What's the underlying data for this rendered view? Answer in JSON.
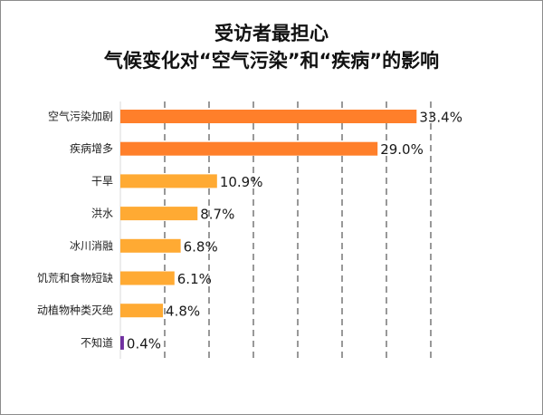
{
  "title_line1": "受访者最担心",
  "title_line2": "气候变化对“空气污染”和“疾病”的影响",
  "chart_data": {
    "type": "bar",
    "orientation": "horizontal",
    "categories": [
      "空气污染加剧",
      "疾病增多",
      "干旱",
      "洪水",
      "冰川消融",
      "饥荒和食物短缺",
      "动植物种类灭绝",
      "不知道"
    ],
    "values": [
      33.4,
      29.0,
      10.9,
      8.7,
      6.8,
      6.1,
      4.8,
      0.4
    ],
    "value_labels": [
      "33.4%",
      "29.0%",
      "10.9%",
      "8.7%",
      "6.8%",
      "6.1%",
      "4.8%",
      "0.4%"
    ],
    "colors": [
      "#ff7f2a",
      "#ff7f2a",
      "#ffaa33",
      "#ffaa33",
      "#ffaa33",
      "#ffaa33",
      "#ffaa33",
      "#7030a0"
    ],
    "xlim": [
      0,
      35
    ],
    "grid": "vertical-dashed"
  }
}
